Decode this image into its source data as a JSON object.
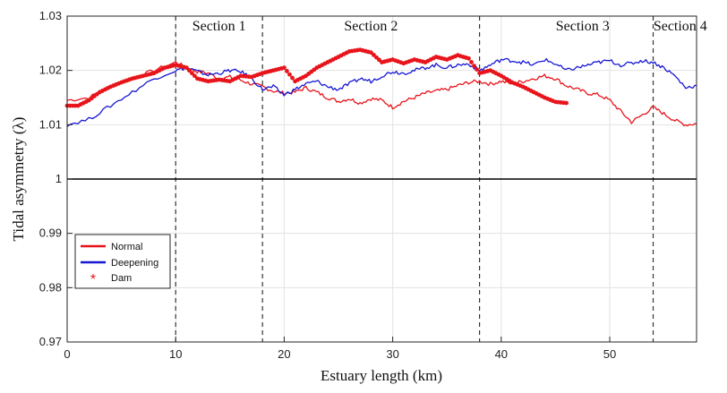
{
  "chart_data": {
    "type": "line",
    "title": "",
    "xlabel": "Estuary length (km)",
    "ylabel": "Tidal asymmetry (λ)",
    "xlim": [
      0,
      58
    ],
    "ylim": [
      0.97,
      1.03
    ],
    "x_ticks": [
      0,
      10,
      20,
      30,
      40,
      50
    ],
    "y_ticks": [
      0.97,
      0.98,
      0.99,
      1,
      1.01,
      1.02,
      1.03
    ],
    "x_tick_labels": [
      "0",
      "10",
      "20",
      "30",
      "40",
      "50"
    ],
    "y_tick_labels": [
      "0.97",
      "0.98",
      "0.99",
      "1",
      "1.01",
      "1.02",
      "1.03"
    ],
    "grid": true,
    "legend_position": "bottom-left",
    "reference_line": {
      "y": 1,
      "color": "#000000"
    },
    "section_lines": [
      10,
      18,
      38,
      54
    ],
    "sections": [
      {
        "label": "Section 1",
        "x": 14
      },
      {
        "label": "Section 2",
        "x": 28
      },
      {
        "label": "Section 3",
        "x": 47.5
      },
      {
        "label": "Section 4",
        "x": 56.5
      }
    ],
    "series": [
      {
        "name": "Normal",
        "color": "#e8141b",
        "style": "line",
        "x": [
          0,
          2,
          4,
          6,
          8,
          10,
          11,
          12,
          13,
          14,
          15,
          16,
          17,
          18,
          19,
          20,
          21,
          22,
          23,
          24,
          25,
          26,
          27,
          28,
          29,
          30,
          31,
          32,
          33,
          34,
          35,
          36,
          37,
          38,
          39,
          40,
          41,
          42,
          43,
          44,
          45,
          46,
          47,
          48,
          49,
          50,
          51,
          52,
          53,
          54,
          55,
          56,
          57,
          58
        ],
        "y": [
          1.0145,
          1.015,
          1.017,
          1.0185,
          1.02,
          1.0215,
          1.0205,
          1.0198,
          1.0195,
          1.0185,
          1.0188,
          1.0182,
          1.0175,
          1.017,
          1.0162,
          1.0158,
          1.016,
          1.0168,
          1.016,
          1.015,
          1.0143,
          1.0148,
          1.014,
          1.0148,
          1.0145,
          1.0132,
          1.0143,
          1.015,
          1.0158,
          1.0162,
          1.0165,
          1.0172,
          1.0178,
          1.018,
          1.0175,
          1.018,
          1.0175,
          1.018,
          1.0185,
          1.019,
          1.0185,
          1.0172,
          1.0165,
          1.0158,
          1.0155,
          1.0145,
          1.0125,
          1.0105,
          1.0118,
          1.0132,
          1.012,
          1.0108,
          1.01,
          1.0102
        ]
      },
      {
        "name": "Deepening",
        "color": "#1616d4",
        "style": "line",
        "x": [
          0,
          2,
          4,
          6,
          8,
          10,
          11,
          12,
          13,
          14,
          15,
          16,
          17,
          18,
          19,
          20,
          21,
          22,
          23,
          24,
          25,
          26,
          27,
          28,
          29,
          30,
          31,
          32,
          33,
          34,
          35,
          36,
          37,
          38,
          39,
          40,
          41,
          42,
          43,
          44,
          45,
          46,
          47,
          48,
          49,
          50,
          51,
          52,
          53,
          54,
          55,
          56,
          57,
          58
        ],
        "y": [
          1.01,
          1.011,
          1.0135,
          1.016,
          1.0185,
          1.02,
          1.0205,
          1.0198,
          1.0192,
          1.0195,
          1.02,
          1.0198,
          1.0185,
          1.0165,
          1.017,
          1.0155,
          1.0165,
          1.0175,
          1.018,
          1.017,
          1.0165,
          1.0175,
          1.0185,
          1.018,
          1.019,
          1.0198,
          1.0195,
          1.02,
          1.0205,
          1.021,
          1.0205,
          1.021,
          1.0212,
          1.02,
          1.021,
          1.022,
          1.0218,
          1.0215,
          1.021,
          1.022,
          1.0212,
          1.02,
          1.0205,
          1.021,
          1.0215,
          1.0218,
          1.021,
          1.0213,
          1.0218,
          1.0215,
          1.0205,
          1.019,
          1.0168,
          1.0172
        ]
      },
      {
        "name": "Dam",
        "color": "#e8141b",
        "style": "marker",
        "x": [
          0,
          1,
          2,
          3,
          4,
          5,
          6,
          7,
          8,
          9,
          10,
          11,
          12,
          13,
          14,
          15,
          16,
          17,
          18,
          19,
          20,
          21,
          22,
          23,
          24,
          25,
          26,
          27,
          28,
          29,
          30,
          31,
          32,
          33,
          34,
          35,
          36,
          37,
          38,
          39,
          40,
          41,
          42,
          43,
          44,
          45,
          46
        ],
        "y": [
          1.0135,
          1.0135,
          1.0145,
          1.016,
          1.017,
          1.0178,
          1.0185,
          1.019,
          1.0195,
          1.0205,
          1.021,
          1.0205,
          1.0185,
          1.018,
          1.0183,
          1.018,
          1.019,
          1.0188,
          1.0195,
          1.02,
          1.0205,
          1.018,
          1.019,
          1.0205,
          1.0215,
          1.0225,
          1.0235,
          1.0238,
          1.0233,
          1.0215,
          1.022,
          1.0213,
          1.022,
          1.0215,
          1.0225,
          1.022,
          1.0228,
          1.0222,
          1.0195,
          1.02,
          1.019,
          1.0178,
          1.017,
          1.016,
          1.015,
          1.0142,
          1.014
        ]
      }
    ]
  }
}
